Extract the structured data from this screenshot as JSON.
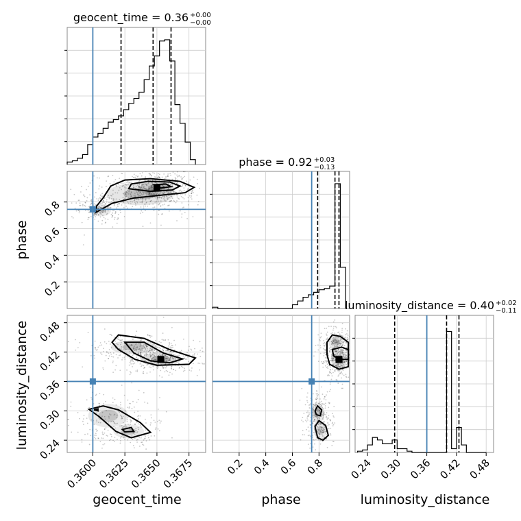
{
  "chart_data": {
    "type": "corner",
    "parameters": [
      "geocent_time",
      "phase",
      "luminosity_distance"
    ],
    "truths": {
      "geocent_time": 0.36,
      "phase": 0.745,
      "luminosity_distance": 0.36
    },
    "truth_color": "#4682b4",
    "titles": [
      {
        "param": "geocent_time",
        "text": "geocent_time = 0.36",
        "sup": "+0.00",
        "sub": "−0.00"
      },
      {
        "param": "phase",
        "text": "phase = 0.92",
        "sup": "+0.03",
        "sub": "−0.13"
      },
      {
        "param": "luminosity_distance",
        "text": "luminosity_distance = 0.40",
        "sup": "+0.02",
        "sub": "−0.11"
      }
    ],
    "axis_labels": {
      "geocent_time": "geocent_time",
      "phase": "phase",
      "luminosity_distance": "luminosity_distance"
    },
    "ranges": {
      "geocent_time": [
        0.358,
        0.3688
      ],
      "phase": [
        0.0,
        1.03
      ],
      "luminosity_distance": [
        0.215,
        0.495
      ]
    },
    "ticks": {
      "geocent_time": {
        "values": [
          0.36,
          0.3625,
          0.365,
          0.3675
        ],
        "labels": [
          "0.3600",
          "0.3625",
          "0.3650",
          "0.3675"
        ]
      },
      "phase_x": {
        "values": [
          0.2,
          0.4,
          0.6,
          0.8
        ],
        "labels": [
          "0.2",
          "0.4",
          "0.6",
          "0.8"
        ]
      },
      "phase_y": {
        "values": [
          0.2,
          0.4,
          0.6,
          0.8
        ],
        "labels": [
          "0.2",
          "0.4",
          "0.6",
          "0.8"
        ]
      },
      "luminosity_distance": {
        "values": [
          0.24,
          0.3,
          0.36,
          0.42,
          0.48
        ],
        "labels": [
          "0.24",
          "0.30",
          "0.36",
          "0.42",
          "0.48"
        ]
      }
    },
    "quantiles": {
      "geocent_time": [
        0.3622,
        0.3647,
        0.3661
      ],
      "phase": [
        0.79,
        0.92,
        0.95
      ],
      "luminosity_distance": [
        0.295,
        0.4,
        0.425
      ]
    },
    "histograms": {
      "geocent_time": {
        "edges": [
          0.358,
          0.3584,
          0.3588,
          0.3592,
          0.3596,
          0.36,
          0.3604,
          0.3608,
          0.3612,
          0.3616,
          0.362,
          0.3624,
          0.3628,
          0.3632,
          0.3636,
          0.364,
          0.3644,
          0.3648,
          0.3652,
          0.3656,
          0.366,
          0.3664,
          0.3668,
          0.3672,
          0.3676,
          0.368
        ],
        "counts": [
          0.02,
          0.03,
          0.05,
          0.08,
          0.16,
          0.22,
          0.25,
          0.29,
          0.34,
          0.36,
          0.39,
          0.44,
          0.49,
          0.53,
          0.58,
          0.68,
          0.79,
          0.87,
          0.99,
          1.0,
          0.83,
          0.48,
          0.33,
          0.18,
          0.04
        ]
      },
      "phase": {
        "edges": [
          0.0,
          0.04,
          0.08,
          0.12,
          0.16,
          0.2,
          0.24,
          0.28,
          0.32,
          0.36,
          0.4,
          0.44,
          0.48,
          0.52,
          0.56,
          0.6,
          0.64,
          0.68,
          0.72,
          0.76,
          0.8,
          0.84,
          0.88,
          0.92,
          0.96,
          1.0
        ],
        "counts": [
          0.01,
          0.0,
          0.0,
          0.0,
          0.0,
          0.0,
          0.0,
          0.0,
          0.0,
          0.0,
          0.0,
          0.0,
          0.0,
          0.0,
          0.0,
          0.03,
          0.06,
          0.09,
          0.11,
          0.13,
          0.15,
          0.16,
          0.18,
          1.0,
          0.33
        ]
      },
      "luminosity_distance": {
        "edges": [
          0.22,
          0.23,
          0.24,
          0.25,
          0.26,
          0.27,
          0.28,
          0.29,
          0.3,
          0.31,
          0.32,
          0.33,
          0.34,
          0.35,
          0.36,
          0.37,
          0.38,
          0.39,
          0.4,
          0.41,
          0.42,
          0.43,
          0.44,
          0.45,
          0.46,
          0.47,
          0.48
        ],
        "counts": [
          0.01,
          0.02,
          0.06,
          0.12,
          0.1,
          0.07,
          0.07,
          0.1,
          0.03,
          0.03,
          0.01,
          0.0,
          0.0,
          0.0,
          0.0,
          0.0,
          0.0,
          0.0,
          0.97,
          0.03,
          0.2,
          0.06,
          0.0,
          0.0,
          0.0,
          0.0
        ]
      }
    },
    "contours": {
      "geocent_time_vs_phase": [
        [
          [
            0.3602,
            0.72
          ],
          [
            0.3615,
            0.79
          ],
          [
            0.3632,
            0.83
          ],
          [
            0.3652,
            0.85
          ],
          [
            0.3672,
            0.87
          ],
          [
            0.3679,
            0.91
          ],
          [
            0.3668,
            0.955
          ],
          [
            0.3645,
            0.975
          ],
          [
            0.3625,
            0.965
          ],
          [
            0.3614,
            0.92
          ],
          [
            0.3608,
            0.83
          ],
          [
            0.3603,
            0.77
          ],
          [
            0.3602,
            0.72
          ]
        ],
        [
          [
            0.3628,
            0.9
          ],
          [
            0.3645,
            0.88
          ],
          [
            0.3662,
            0.89
          ],
          [
            0.3668,
            0.92
          ],
          [
            0.366,
            0.95
          ],
          [
            0.3643,
            0.955
          ],
          [
            0.363,
            0.935
          ],
          [
            0.3628,
            0.9
          ]
        ],
        [
          [
            0.3653,
            0.905
          ],
          [
            0.3661,
            0.915
          ],
          [
            0.3657,
            0.935
          ],
          [
            0.3648,
            0.93
          ],
          [
            0.3653,
            0.905
          ]
        ]
      ],
      "geocent_time_vs_luminosity_distance": [
        [
          [
            0.3615,
            0.44
          ],
          [
            0.362,
            0.455
          ],
          [
            0.364,
            0.448
          ],
          [
            0.366,
            0.425
          ],
          [
            0.368,
            0.408
          ],
          [
            0.3675,
            0.395
          ],
          [
            0.365,
            0.393
          ],
          [
            0.3633,
            0.405
          ],
          [
            0.362,
            0.425
          ],
          [
            0.3615,
            0.44
          ]
        ],
        [
          [
            0.3625,
            0.44
          ],
          [
            0.364,
            0.44
          ],
          [
            0.3655,
            0.418
          ],
          [
            0.367,
            0.406
          ],
          [
            0.366,
            0.398
          ],
          [
            0.3645,
            0.402
          ],
          [
            0.3632,
            0.418
          ],
          [
            0.3625,
            0.44
          ]
        ],
        [
          [
            0.3597,
            0.303
          ],
          [
            0.3608,
            0.31
          ],
          [
            0.362,
            0.302
          ],
          [
            0.3637,
            0.276
          ],
          [
            0.3645,
            0.256
          ],
          [
            0.363,
            0.245
          ],
          [
            0.3618,
            0.258
          ],
          [
            0.3605,
            0.288
          ],
          [
            0.3597,
            0.303
          ]
        ],
        [
          [
            0.3623,
            0.262
          ],
          [
            0.363,
            0.266
          ],
          [
            0.3632,
            0.258
          ],
          [
            0.3625,
            0.257
          ],
          [
            0.3623,
            0.262
          ]
        ],
        [
          [
            0.3601,
            0.302
          ],
          [
            0.3604,
            0.304
          ],
          [
            0.3604,
            0.3
          ],
          [
            0.3601,
            0.302
          ]
        ]
      ],
      "phase_vs_luminosity_distance": [
        [
          [
            0.86,
            0.44
          ],
          [
            0.9,
            0.455
          ],
          [
            0.96,
            0.452
          ],
          [
            1.02,
            0.44
          ],
          [
            1.02,
            0.39
          ],
          [
            0.95,
            0.385
          ],
          [
            0.88,
            0.395
          ],
          [
            0.86,
            0.415
          ],
          [
            0.86,
            0.44
          ]
        ],
        [
          [
            0.9,
            0.425
          ],
          [
            0.97,
            0.43
          ],
          [
            1.02,
            0.425
          ],
          [
            1.02,
            0.405
          ],
          [
            0.96,
            0.405
          ],
          [
            0.91,
            0.412
          ],
          [
            0.9,
            0.425
          ]
        ],
        [
          [
            0.77,
            0.3
          ],
          [
            0.79,
            0.31
          ],
          [
            0.82,
            0.302
          ],
          [
            0.81,
            0.29
          ],
          [
            0.78,
            0.292
          ],
          [
            0.77,
            0.3
          ]
        ],
        [
          [
            0.77,
            0.268
          ],
          [
            0.8,
            0.28
          ],
          [
            0.85,
            0.27
          ],
          [
            0.87,
            0.25
          ],
          [
            0.83,
            0.24
          ],
          [
            0.79,
            0.245
          ],
          [
            0.77,
            0.268
          ]
        ]
      ]
    },
    "density_peaks": {
      "geocent_time_vs_phase": [
        {
          "x": 0.365,
          "y": 0.905,
          "sx": 0.0011,
          "sy": 0.05,
          "w": 1.0
        },
        {
          "x": 0.3637,
          "y": 0.86,
          "sx": 0.0022,
          "sy": 0.07,
          "w": 0.6
        },
        {
          "x": 0.3606,
          "y": 0.74,
          "sx": 0.0007,
          "sy": 0.04,
          "w": 0.35
        }
      ],
      "geocent_time_vs_luminosity_distance": [
        {
          "x": 0.3653,
          "y": 0.405,
          "sx": 0.0013,
          "sy": 0.012,
          "w": 1.0
        },
        {
          "x": 0.3632,
          "y": 0.43,
          "sx": 0.0015,
          "sy": 0.012,
          "w": 0.6
        },
        {
          "x": 0.3612,
          "y": 0.29,
          "sx": 0.0013,
          "sy": 0.02,
          "w": 0.45
        },
        {
          "x": 0.3628,
          "y": 0.258,
          "sx": 0.001,
          "sy": 0.012,
          "w": 0.35
        }
      ],
      "phase_vs_luminosity_distance": [
        {
          "x": 0.95,
          "y": 0.405,
          "sx": 0.05,
          "sy": 0.015,
          "w": 1.0
        },
        {
          "x": 0.93,
          "y": 0.44,
          "sx": 0.05,
          "sy": 0.012,
          "w": 0.5
        },
        {
          "x": 0.79,
          "y": 0.295,
          "sx": 0.04,
          "sy": 0.018,
          "w": 0.5
        },
        {
          "x": 0.81,
          "y": 0.26,
          "sx": 0.04,
          "sy": 0.015,
          "w": 0.4
        }
      ]
    },
    "grid": true
  }
}
